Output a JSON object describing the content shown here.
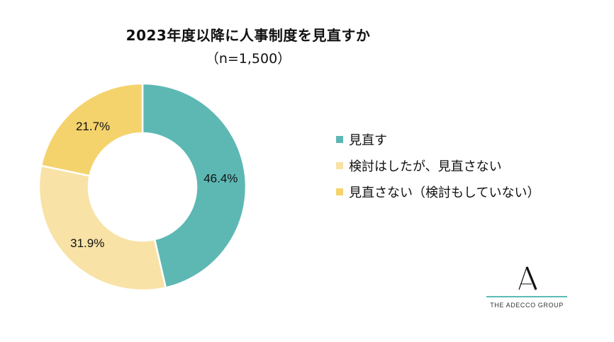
{
  "chart_data": {
    "type": "pie",
    "title": "2023年度以降に人事制度を見直すか",
    "subtitle": "（n=1,500）",
    "categories": [
      "見直す",
      "検討はしたが、見直さない",
      "見直さない（検討もしていない）"
    ],
    "values": [
      46.4,
      31.9,
      21.7
    ],
    "labels": [
      "46.4%",
      "31.9%",
      "21.7%"
    ],
    "colors": [
      "#5db8b4",
      "#f8e2a6",
      "#f4d36d"
    ],
    "donut": true,
    "legend_position": "right"
  },
  "logo": {
    "text": "THE ADECCO GROUP",
    "mark": "A"
  }
}
